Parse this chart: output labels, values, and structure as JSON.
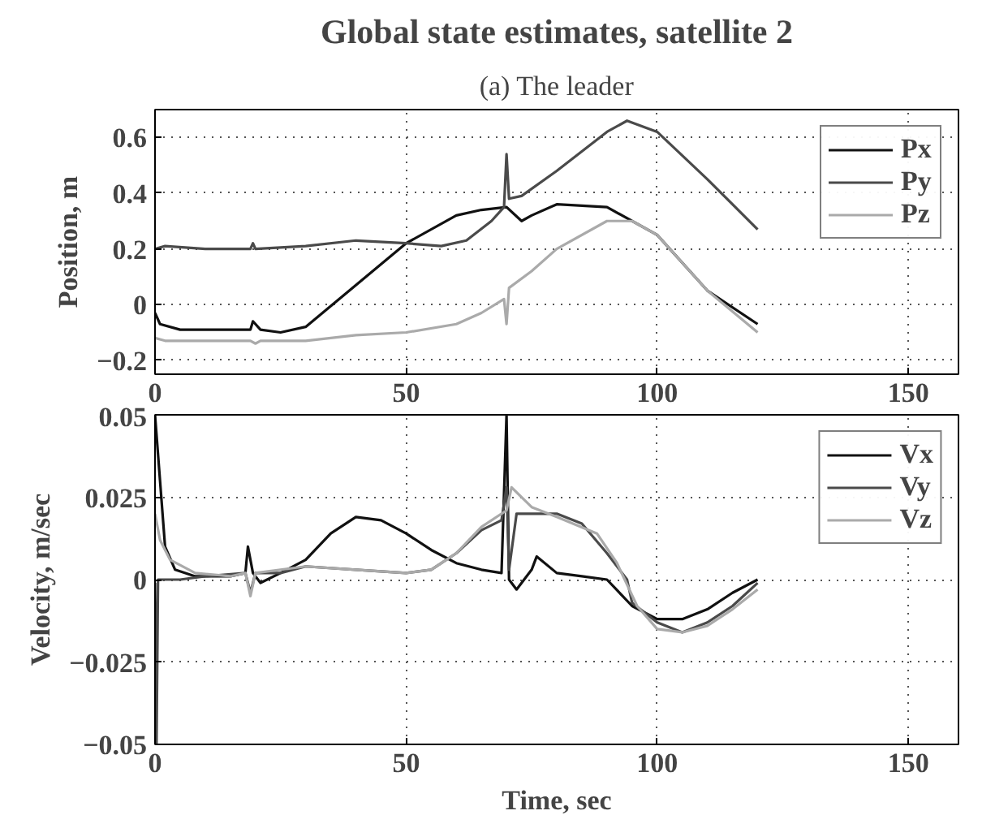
{
  "chart_data": [
    {
      "type": "line",
      "title": "Global state estimates, satellite 2",
      "annotations": [
        "(a) The leader"
      ],
      "ylabel": "Position, m",
      "xlim": [
        0,
        160
      ],
      "xticks": [
        0,
        50,
        100,
        150
      ],
      "ylim": [
        -0.25,
        0.7
      ],
      "yticks": [
        {
          "value": -0.2,
          "label": "−0.2"
        },
        0,
        0.2,
        0.4,
        0.6
      ],
      "grid": true,
      "legend": "top right",
      "marker": "none",
      "line_style": "solid",
      "series": [
        {
          "name": "Px",
          "color": "#111111",
          "x": [
            0,
            1,
            5,
            19,
            19.5,
            21,
            25,
            30,
            40,
            50,
            60,
            65,
            70,
            73,
            75,
            80,
            90,
            100,
            110,
            120
          ],
          "values": [
            -0.03,
            -0.07,
            -0.09,
            -0.09,
            -0.06,
            -0.09,
            -0.1,
            -0.08,
            0.07,
            0.22,
            0.32,
            0.34,
            0.35,
            0.3,
            0.32,
            0.36,
            0.35,
            0.25,
            0.05,
            -0.07
          ]
        },
        {
          "name": "Py",
          "color": "#4a4a4a",
          "x": [
            0,
            2,
            10,
            19,
            19.5,
            20,
            30,
            40,
            50,
            57,
            62,
            67,
            69.5,
            70,
            70.5,
            73,
            80,
            90,
            94,
            100,
            110,
            120
          ],
          "values": [
            0.2,
            0.21,
            0.2,
            0.2,
            0.22,
            0.2,
            0.21,
            0.23,
            0.22,
            0.21,
            0.23,
            0.3,
            0.35,
            0.54,
            0.38,
            0.39,
            0.48,
            0.62,
            0.66,
            0.62,
            0.45,
            0.27
          ]
        },
        {
          "name": "Pz",
          "color": "#aaaaaa",
          "x": [
            0,
            2,
            19,
            20,
            21,
            30,
            40,
            50,
            60,
            65,
            69.5,
            70,
            70.5,
            75,
            80,
            90,
            95,
            100,
            110,
            120
          ],
          "values": [
            -0.12,
            -0.13,
            -0.13,
            -0.14,
            -0.13,
            -0.13,
            -0.11,
            -0.1,
            -0.07,
            -0.03,
            0.02,
            -0.07,
            0.06,
            0.12,
            0.2,
            0.3,
            0.3,
            0.25,
            0.05,
            -0.1
          ]
        }
      ]
    },
    {
      "type": "line",
      "xlabel": "Time, sec",
      "ylabel": "Velocity, m/sec",
      "xlim": [
        0,
        160
      ],
      "xticks": [
        0,
        50,
        100,
        150
      ],
      "ylim": [
        -0.05,
        0.05
      ],
      "yticks": [
        {
          "value": -0.05,
          "label": "−0.05"
        },
        {
          "value": -0.025,
          "label": "−0.025"
        },
        0,
        0.025,
        0.05
      ],
      "grid": true,
      "legend": "top right",
      "marker": "none",
      "line_style": "solid",
      "series": [
        {
          "name": "Vx",
          "color": "#111111",
          "x": [
            0,
            1,
            2,
            4,
            8,
            15,
            18,
            18.5,
            19.5,
            21,
            25,
            30,
            35,
            40,
            45,
            50,
            55,
            60,
            65,
            69,
            70,
            70.5,
            72,
            75,
            76,
            80,
            85,
            90,
            95,
            100,
            105,
            110,
            115,
            120
          ],
          "values": [
            0.05,
            0.03,
            0.01,
            0.003,
            0.001,
            0.001,
            0.002,
            0.01,
            0.002,
            -0.001,
            0.002,
            0.006,
            0.014,
            0.019,
            0.018,
            0.014,
            0.009,
            0.005,
            0.003,
            0.002,
            0.05,
            0,
            -0.003,
            0.003,
            0.007,
            0.002,
            0.001,
            0,
            -0.008,
            -0.012,
            -0.012,
            -0.009,
            -0.004,
            0
          ]
        },
        {
          "name": "Vy",
          "color": "#4a4a4a",
          "x": [
            0,
            0.3,
            0.6,
            5,
            10,
            18,
            19,
            20,
            25,
            30,
            40,
            50,
            55,
            60,
            65,
            69,
            70,
            70.5,
            72,
            80,
            85,
            90,
            94,
            95,
            100,
            105,
            110,
            115,
            120
          ],
          "values": [
            -0.001,
            -0.05,
            0,
            0,
            0.001,
            0.002,
            -0.004,
            0.002,
            0.002,
            0.004,
            0.003,
            0.002,
            0.003,
            0.008,
            0.015,
            0.018,
            0.028,
            0.003,
            0.02,
            0.02,
            0.017,
            0.008,
            0,
            -0.007,
            -0.013,
            -0.016,
            -0.013,
            -0.008,
            -0.001
          ]
        },
        {
          "name": "Vz",
          "color": "#aaaaaa",
          "x": [
            0,
            1,
            3,
            8,
            15,
            18,
            19,
            20,
            30,
            40,
            50,
            55,
            60,
            65,
            70,
            71,
            75,
            80,
            88,
            92,
            96,
            100,
            105,
            110,
            115,
            120
          ],
          "values": [
            0.02,
            0.012,
            0.006,
            0.002,
            0.001,
            0.002,
            -0.005,
            0.002,
            0.004,
            0.003,
            0.002,
            0.003,
            0.008,
            0.016,
            0.021,
            0.028,
            0.022,
            0.019,
            0.014,
            0.005,
            -0.008,
            -0.015,
            -0.016,
            -0.014,
            -0.009,
            -0.003
          ]
        }
      ]
    }
  ]
}
